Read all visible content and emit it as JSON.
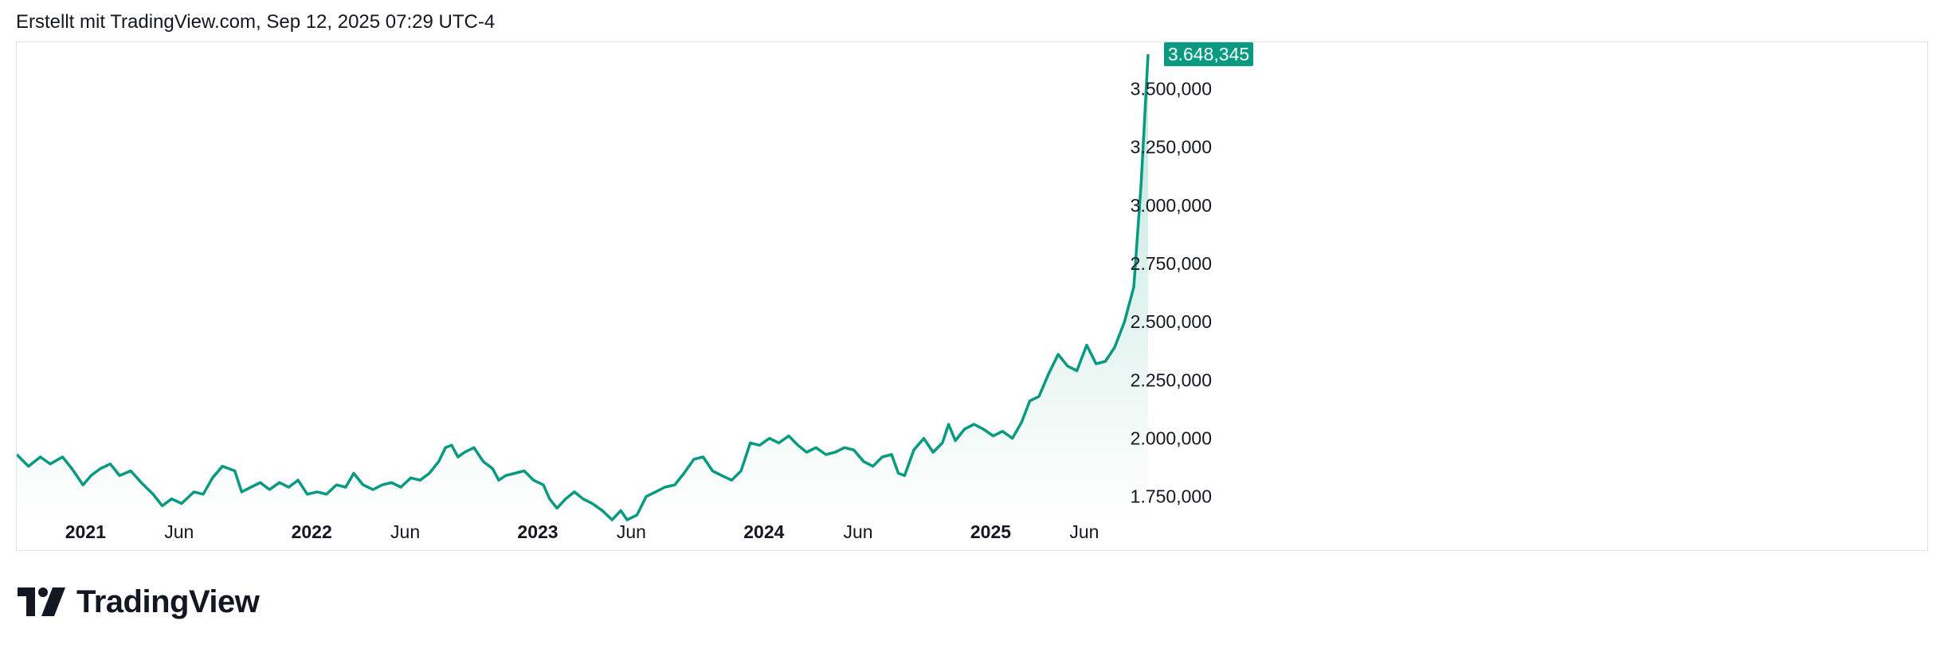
{
  "header": {
    "created_with": "Erstellt mit TradingView.com, Sep 12, 2025 07:29 UTC-4"
  },
  "brand": {
    "logo_text": "TradingView",
    "icon": "tradingview-logo-icon"
  },
  "colors": {
    "line": "#089981",
    "area_top": "#b9e3d8",
    "area_bottom": "#ffffff",
    "badge": "#089981",
    "grid_border": "#e0e3eb",
    "text": "#131722"
  },
  "chart_data": {
    "type": "area",
    "title": "",
    "xlabel": "",
    "ylabel": "",
    "grid": false,
    "ylim": [
      1650000,
      3700000
    ],
    "xlim": [
      "2020-09-12",
      "2025-09-12"
    ],
    "y_ticks": [
      {
        "value": 1750000,
        "label": "1.750,000"
      },
      {
        "value": 2000000,
        "label": "2.000,000"
      },
      {
        "value": 2250000,
        "label": "2.250,000"
      },
      {
        "value": 2500000,
        "label": "2.500,000"
      },
      {
        "value": 2750000,
        "label": "2.750,000"
      },
      {
        "value": 3000000,
        "label": "3.000,000"
      },
      {
        "value": 3250000,
        "label": "3.250,000"
      },
      {
        "value": 3500000,
        "label": "3.500,000"
      }
    ],
    "x_ticks": [
      {
        "date": "2021-01-01",
        "label": "2021",
        "bold": true
      },
      {
        "date": "2021-06-01",
        "label": "Jun",
        "bold": false
      },
      {
        "date": "2022-01-01",
        "label": "2022",
        "bold": true
      },
      {
        "date": "2022-06-01",
        "label": "Jun",
        "bold": false
      },
      {
        "date": "2023-01-01",
        "label": "2023",
        "bold": true
      },
      {
        "date": "2023-06-01",
        "label": "Jun",
        "bold": false
      },
      {
        "date": "2024-01-01",
        "label": "2024",
        "bold": true
      },
      {
        "date": "2024-06-01",
        "label": "Jun",
        "bold": false
      },
      {
        "date": "2025-01-01",
        "label": "2025",
        "bold": true
      },
      {
        "date": "2025-06-01",
        "label": "Jun",
        "bold": false
      }
    ],
    "last_value": {
      "value": 3648345,
      "label": "3.648,345"
    },
    "series": [
      {
        "points": [
          [
            "2020-09-12",
            1930000
          ],
          [
            "2020-10-01",
            1880000
          ],
          [
            "2020-10-20",
            1920000
          ],
          [
            "2020-11-05",
            1890000
          ],
          [
            "2020-11-25",
            1920000
          ],
          [
            "2020-12-10",
            1870000
          ],
          [
            "2020-12-28",
            1800000
          ],
          [
            "2021-01-10",
            1840000
          ],
          [
            "2021-01-25",
            1870000
          ],
          [
            "2021-02-10",
            1890000
          ],
          [
            "2021-02-25",
            1840000
          ],
          [
            "2021-03-15",
            1860000
          ],
          [
            "2021-04-01",
            1810000
          ],
          [
            "2021-04-20",
            1760000
          ],
          [
            "2021-05-05",
            1710000
          ],
          [
            "2021-05-20",
            1740000
          ],
          [
            "2021-06-05",
            1720000
          ],
          [
            "2021-06-25",
            1770000
          ],
          [
            "2021-07-10",
            1760000
          ],
          [
            "2021-07-25",
            1830000
          ],
          [
            "2021-08-10",
            1880000
          ],
          [
            "2021-08-30",
            1860000
          ],
          [
            "2021-09-10",
            1770000
          ],
          [
            "2021-09-25",
            1790000
          ],
          [
            "2021-10-10",
            1810000
          ],
          [
            "2021-10-25",
            1780000
          ],
          [
            "2021-11-10",
            1810000
          ],
          [
            "2021-11-25",
            1790000
          ],
          [
            "2021-12-10",
            1820000
          ],
          [
            "2021-12-25",
            1760000
          ],
          [
            "2022-01-10",
            1770000
          ],
          [
            "2022-01-25",
            1760000
          ],
          [
            "2022-02-10",
            1800000
          ],
          [
            "2022-02-25",
            1790000
          ],
          [
            "2022-03-10",
            1850000
          ],
          [
            "2022-03-25",
            1800000
          ],
          [
            "2022-04-10",
            1780000
          ],
          [
            "2022-04-25",
            1800000
          ],
          [
            "2022-05-10",
            1810000
          ],
          [
            "2022-05-25",
            1790000
          ],
          [
            "2022-06-10",
            1830000
          ],
          [
            "2022-06-25",
            1820000
          ],
          [
            "2022-07-10",
            1850000
          ],
          [
            "2022-07-25",
            1900000
          ],
          [
            "2022-08-05",
            1960000
          ],
          [
            "2022-08-15",
            1970000
          ],
          [
            "2022-08-25",
            1920000
          ],
          [
            "2022-09-05",
            1940000
          ],
          [
            "2022-09-20",
            1960000
          ],
          [
            "2022-10-05",
            1900000
          ],
          [
            "2022-10-20",
            1870000
          ],
          [
            "2022-10-30",
            1820000
          ],
          [
            "2022-11-10",
            1840000
          ],
          [
            "2022-11-25",
            1850000
          ],
          [
            "2022-12-10",
            1860000
          ],
          [
            "2022-12-25",
            1820000
          ],
          [
            "2023-01-10",
            1800000
          ],
          [
            "2023-01-20",
            1740000
          ],
          [
            "2023-02-01",
            1700000
          ],
          [
            "2023-02-15",
            1740000
          ],
          [
            "2023-03-01",
            1770000
          ],
          [
            "2023-03-15",
            1740000
          ],
          [
            "2023-03-30",
            1720000
          ],
          [
            "2023-04-15",
            1690000
          ],
          [
            "2023-05-01",
            1650000
          ],
          [
            "2023-05-15",
            1690000
          ],
          [
            "2023-05-25",
            1650000
          ],
          [
            "2023-06-10",
            1670000
          ],
          [
            "2023-06-25",
            1750000
          ],
          [
            "2023-07-10",
            1770000
          ],
          [
            "2023-07-25",
            1790000
          ],
          [
            "2023-08-10",
            1800000
          ],
          [
            "2023-08-25",
            1850000
          ],
          [
            "2023-09-10",
            1910000
          ],
          [
            "2023-09-25",
            1920000
          ],
          [
            "2023-10-10",
            1860000
          ],
          [
            "2023-10-25",
            1840000
          ],
          [
            "2023-11-10",
            1820000
          ],
          [
            "2023-11-25",
            1860000
          ],
          [
            "2023-12-10",
            1980000
          ],
          [
            "2023-12-25",
            1970000
          ],
          [
            "2024-01-10",
            2000000
          ],
          [
            "2024-01-25",
            1980000
          ],
          [
            "2024-02-10",
            2010000
          ],
          [
            "2024-02-25",
            1970000
          ],
          [
            "2024-03-10",
            1940000
          ],
          [
            "2024-03-25",
            1960000
          ],
          [
            "2024-04-10",
            1930000
          ],
          [
            "2024-04-25",
            1940000
          ],
          [
            "2024-05-10",
            1960000
          ],
          [
            "2024-05-25",
            1950000
          ],
          [
            "2024-06-10",
            1900000
          ],
          [
            "2024-06-25",
            1880000
          ],
          [
            "2024-07-10",
            1920000
          ],
          [
            "2024-07-25",
            1930000
          ],
          [
            "2024-08-05",
            1850000
          ],
          [
            "2024-08-15",
            1840000
          ],
          [
            "2024-08-30",
            1950000
          ],
          [
            "2024-09-15",
            2000000
          ],
          [
            "2024-09-30",
            1940000
          ],
          [
            "2024-10-15",
            1980000
          ],
          [
            "2024-10-25",
            2060000
          ],
          [
            "2024-11-05",
            1990000
          ],
          [
            "2024-11-20",
            2040000
          ],
          [
            "2024-12-05",
            2060000
          ],
          [
            "2024-12-20",
            2040000
          ],
          [
            "2025-01-05",
            2010000
          ],
          [
            "2025-01-20",
            2030000
          ],
          [
            "2025-02-05",
            2000000
          ],
          [
            "2025-02-20",
            2070000
          ],
          [
            "2025-03-05",
            2160000
          ],
          [
            "2025-03-20",
            2180000
          ],
          [
            "2025-04-05",
            2280000
          ],
          [
            "2025-04-20",
            2360000
          ],
          [
            "2025-05-05",
            2310000
          ],
          [
            "2025-05-20",
            2290000
          ],
          [
            "2025-06-05",
            2400000
          ],
          [
            "2025-06-20",
            2320000
          ],
          [
            "2025-07-05",
            2330000
          ],
          [
            "2025-07-20",
            2390000
          ],
          [
            "2025-08-05",
            2500000
          ],
          [
            "2025-08-20",
            2650000
          ],
          [
            "2025-09-01",
            3100000
          ],
          [
            "2025-09-12",
            3648345
          ]
        ]
      }
    ]
  }
}
